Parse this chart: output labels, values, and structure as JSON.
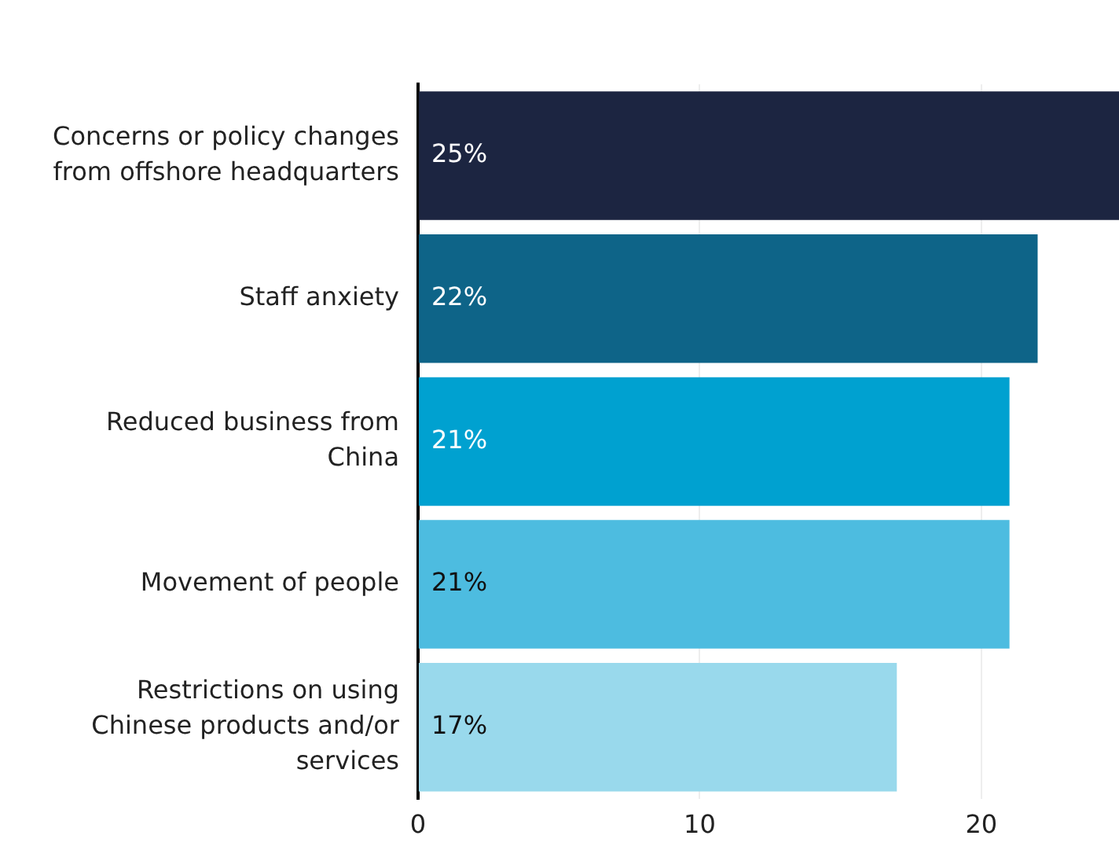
{
  "chart_data": {
    "type": "bar",
    "orientation": "horizontal",
    "categories": [
      "Concerns or policy changes from offshore headquarters",
      "Staff anxiety",
      "Reduced business from China",
      "Movement of people",
      "Restrictions on using Chinese products and/or services"
    ],
    "values": [
      25,
      22,
      21,
      21,
      17
    ],
    "colors": [
      "#1c2541",
      "#0e6488",
      "#00a1d0",
      "#4dbce0",
      "#99d9ec"
    ],
    "value_labels": [
      "25%",
      "22%",
      "21%",
      "21%",
      "17%"
    ],
    "xlim": [
      0,
      25
    ],
    "xticks": [
      0,
      10,
      20
    ],
    "grid": "x",
    "legend": false
  }
}
